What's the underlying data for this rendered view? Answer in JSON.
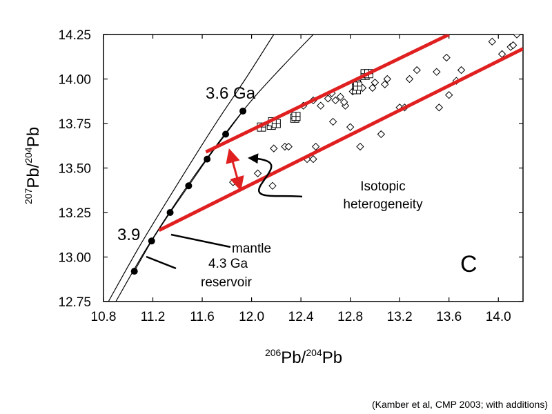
{
  "chart_data": {
    "type": "scatter",
    "x_axis": {
      "label_prefix": "206",
      "label_mid": "Pb/",
      "label_sup": "204",
      "label_suffix": "Pb",
      "range": [
        10.8,
        14.2
      ],
      "ticks": [
        "10.8",
        "11.2",
        "11.6",
        "12.0",
        "12.4",
        "12.8",
        "13.2",
        "13.6",
        "14.0"
      ]
    },
    "y_axis": {
      "label_prefix": "207",
      "label_mid": "Pb/",
      "label_sup": "204",
      "label_suffix": "Pb",
      "range": [
        12.75,
        14.25
      ],
      "ticks": [
        "12.75",
        "13.00",
        "13.25",
        "13.50",
        "13.75",
        "14.00",
        "14.25"
      ]
    },
    "grid": false,
    "panel_label": "C",
    "growth_curve_points": [
      {
        "x": 11.05,
        "y": 12.92
      },
      {
        "x": 11.19,
        "y": 13.09
      },
      {
        "x": 11.34,
        "y": 13.25
      },
      {
        "x": 11.49,
        "y": 13.4
      },
      {
        "x": 11.64,
        "y": 13.55
      },
      {
        "x": 11.79,
        "y": 13.69
      },
      {
        "x": 11.93,
        "y": 13.82
      }
    ],
    "curve_4_3_Ga_reservoir": [
      {
        "x": 10.9,
        "y": 12.75
      },
      {
        "x": 11.15,
        "y": 13.05
      },
      {
        "x": 11.45,
        "y": 13.37
      },
      {
        "x": 11.75,
        "y": 13.66
      },
      {
        "x": 12.0,
        "y": 13.88
      },
      {
        "x": 12.25,
        "y": 14.07
      },
      {
        "x": 12.5,
        "y": 14.25
      }
    ],
    "curve_mantle": [
      {
        "x": 10.84,
        "y": 12.75
      },
      {
        "x": 11.1,
        "y": 13.07
      },
      {
        "x": 11.4,
        "y": 13.41
      },
      {
        "x": 11.7,
        "y": 13.74
      },
      {
        "x": 11.95,
        "y": 14.0
      },
      {
        "x": 12.18,
        "y": 14.25
      }
    ],
    "upper_reference_line": [
      {
        "x": 11.63,
        "y": 13.59
      },
      {
        "x": 13.6,
        "y": 14.25
      }
    ],
    "lower_reference_line": [
      {
        "x": 11.25,
        "y": 13.15
      },
      {
        "x": 14.2,
        "y": 14.17
      }
    ],
    "diamond_points": [
      [
        11.85,
        13.42
      ],
      [
        12.05,
        13.47
      ],
      [
        12.17,
        13.4
      ],
      [
        12.18,
        13.61
      ],
      [
        12.27,
        13.62
      ],
      [
        12.3,
        13.62
      ],
      [
        12.45,
        13.55
      ],
      [
        12.5,
        13.55
      ],
      [
        12.52,
        13.62
      ],
      [
        12.42,
        13.85
      ],
      [
        12.5,
        13.88
      ],
      [
        12.56,
        13.85
      ],
      [
        12.62,
        13.89
      ],
      [
        12.65,
        13.92
      ],
      [
        12.68,
        13.88
      ],
      [
        12.72,
        13.9
      ],
      [
        12.76,
        13.85
      ],
      [
        12.66,
        13.76
      ],
      [
        12.8,
        13.73
      ],
      [
        12.82,
        13.93
      ],
      [
        12.85,
        13.97
      ],
      [
        12.88,
        13.62
      ],
      [
        12.9,
        13.95
      ],
      [
        12.98,
        13.95
      ],
      [
        13.0,
        13.98
      ],
      [
        13.05,
        13.69
      ],
      [
        13.08,
        13.97
      ],
      [
        13.1,
        14.0
      ],
      [
        13.2,
        13.84
      ],
      [
        13.24,
        13.84
      ],
      [
        13.28,
        14.0
      ],
      [
        13.34,
        14.05
      ],
      [
        13.5,
        14.04
      ],
      [
        13.52,
        13.84
      ],
      [
        13.58,
        14.12
      ],
      [
        13.6,
        13.91
      ],
      [
        13.7,
        14.05
      ],
      [
        13.95,
        14.21
      ],
      [
        14.03,
        14.14
      ],
      [
        14.1,
        14.18
      ],
      [
        14.12,
        14.19
      ],
      [
        14.15,
        14.25
      ],
      [
        13.66,
        13.99
      ],
      [
        12.75,
        13.87
      ]
    ],
    "square_points": [
      [
        12.08,
        13.73
      ],
      [
        12.16,
        13.74
      ],
      [
        12.17,
        13.76
      ],
      [
        12.2,
        13.75
      ],
      [
        12.35,
        13.78
      ],
      [
        12.36,
        13.79
      ],
      [
        12.85,
        13.94
      ],
      [
        12.85,
        13.97
      ],
      [
        12.92,
        14.02
      ],
      [
        12.92,
        14.03
      ],
      [
        12.95,
        14.03
      ],
      [
        12.86,
        13.96
      ]
    ],
    "annotations": {
      "label_3_6_ga": "3.6 Ga",
      "label_3_9": "3.9",
      "label_mantle": "mantle",
      "label_reservoir_line1": "4.3 Ga",
      "label_reservoir_line2": "reservoir",
      "label_isotopic_line1": "Isotopic",
      "label_isotopic_line2": "heterogeneity"
    },
    "colors": {
      "reference_lines": "#e02020",
      "arrow": "#e02020",
      "markers": "#000000",
      "curves": "#000000"
    }
  },
  "citation": "(Kamber et al, CMP 2003; with additions)"
}
